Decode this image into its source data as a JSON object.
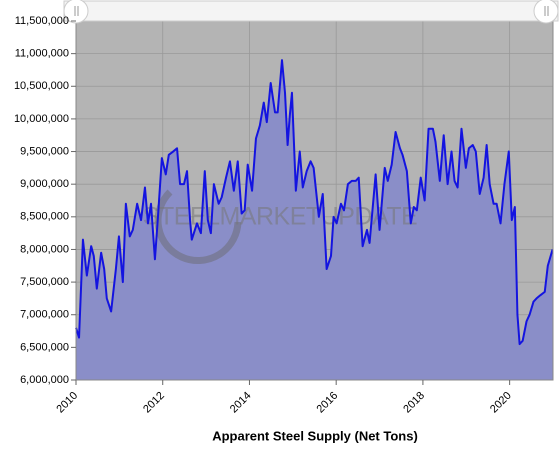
{
  "chart_data": {
    "type": "area",
    "x_title": "Apparent Steel Supply (Net Tons)",
    "watermark": "STEELMARKETUPDATE",
    "xlim": [
      2010,
      2021
    ],
    "xticks": [
      2010,
      2012,
      2014,
      2016,
      2018,
      2020
    ],
    "ylim": [
      6000000,
      11500000
    ],
    "yticks": [
      {
        "value": 6000000,
        "label": "6,000,000"
      },
      {
        "value": 6500000,
        "label": "6,500,000"
      },
      {
        "value": 7000000,
        "label": "7,000,000"
      },
      {
        "value": 7500000,
        "label": "7,500,000"
      },
      {
        "value": 8000000,
        "label": "8,000,000"
      },
      {
        "value": 8500000,
        "label": "8,500,000"
      },
      {
        "value": 9000000,
        "label": "9,000,000"
      },
      {
        "value": 9500000,
        "label": "9,500,000"
      },
      {
        "value": 10000000,
        "label": "10,000,000"
      },
      {
        "value": 10500000,
        "label": "10,500,000"
      },
      {
        "value": 11000000,
        "label": "11,000,000"
      },
      {
        "value": 11500000,
        "label": "11,500,000"
      }
    ],
    "grid": true,
    "color": "#1414e0",
    "fill": "#8a8ec8",
    "background": "#b4b4b4",
    "x": [
      2010.0,
      2010.07,
      2010.16,
      2010.25,
      2010.35,
      2010.41,
      2010.48,
      2010.58,
      2010.65,
      2010.71,
      2010.81,
      2010.92,
      2010.99,
      2011.08,
      2011.15,
      2011.24,
      2011.31,
      2011.41,
      2011.5,
      2011.59,
      2011.66,
      2011.73,
      2011.82,
      2011.89,
      2011.98,
      2012.07,
      2012.14,
      2012.24,
      2012.33,
      2012.4,
      2012.49,
      2012.56,
      2012.63,
      2012.67,
      2012.79,
      2012.88,
      2012.97,
      2013.04,
      2013.11,
      2013.18,
      2013.29,
      2013.36,
      2013.46,
      2013.55,
      2013.64,
      2013.73,
      2013.82,
      2013.89,
      2013.96,
      2014.06,
      2014.15,
      2014.24,
      2014.33,
      2014.4,
      2014.49,
      2014.59,
      2014.65,
      2014.75,
      2014.82,
      2014.88,
      2014.93,
      2014.98,
      2015.07,
      2015.16,
      2015.23,
      2015.32,
      2015.41,
      2015.48,
      2015.6,
      2015.69,
      2015.78,
      2015.88,
      2015.94,
      2016.01,
      2016.11,
      2016.18,
      2016.27,
      2016.36,
      2016.45,
      2016.52,
      2016.61,
      2016.71,
      2016.77,
      2016.91,
      2017.0,
      2017.12,
      2017.19,
      2017.28,
      2017.37,
      2017.47,
      2017.53,
      2017.63,
      2017.72,
      2017.79,
      2017.86,
      2017.95,
      2018.04,
      2018.13,
      2018.23,
      2018.29,
      2018.39,
      2018.48,
      2018.57,
      2018.66,
      2018.73,
      2018.8,
      2018.89,
      2018.99,
      2019.06,
      2019.15,
      2019.22,
      2019.31,
      2019.4,
      2019.47,
      2019.54,
      2019.63,
      2019.7,
      2019.79,
      2019.88,
      2019.98,
      2020.05,
      2020.12,
      2020.18,
      2020.23,
      2020.3,
      2020.39,
      2020.46,
      2020.55,
      2020.62,
      2020.71,
      2020.81,
      2020.88,
      2020.99
    ],
    "values": [
      6800000,
      6650000,
      8150000,
      7600000,
      8050000,
      7900000,
      7400000,
      7950000,
      7700000,
      7250000,
      7050000,
      7700000,
      8200000,
      7500000,
      8700000,
      8200000,
      8300000,
      8700000,
      8450000,
      8950000,
      8400000,
      8700000,
      7850000,
      8500000,
      9400000,
      9150000,
      9450000,
      9500000,
      9550000,
      9000000,
      9000000,
      9200000,
      8450000,
      8150000,
      8400000,
      8250000,
      9200000,
      8450000,
      8250000,
      9000000,
      8700000,
      8800000,
      9100000,
      9350000,
      8900000,
      9350000,
      8550000,
      8600000,
      9300000,
      8900000,
      9700000,
      9900000,
      10250000,
      9950000,
      10550000,
      10100000,
      10100000,
      10900000,
      10400000,
      9600000,
      10050000,
      10400000,
      8900000,
      9500000,
      8950000,
      9200000,
      9350000,
      9250000,
      8500000,
      8850000,
      7700000,
      7900000,
      8500000,
      8400000,
      8700000,
      8600000,
      9000000,
      9050000,
      9050000,
      9100000,
      8050000,
      8300000,
      8100000,
      9150000,
      8300000,
      9250000,
      9050000,
      9300000,
      9800000,
      9550000,
      9450000,
      9200000,
      8400000,
      8650000,
      8600000,
      9100000,
      8750000,
      9850000,
      9850000,
      9650000,
      9050000,
      9750000,
      9000000,
      9500000,
      9050000,
      8950000,
      9850000,
      9250000,
      9550000,
      9600000,
      9500000,
      8850000,
      9100000,
      9600000,
      9000000,
      8700000,
      8700000,
      8400000,
      9000000,
      9500000,
      8450000,
      8650000,
      7000000,
      6550000,
      6600000,
      6900000,
      7000000,
      7200000,
      7250000,
      7300000,
      7350000,
      7750000,
      8000000
    ]
  }
}
